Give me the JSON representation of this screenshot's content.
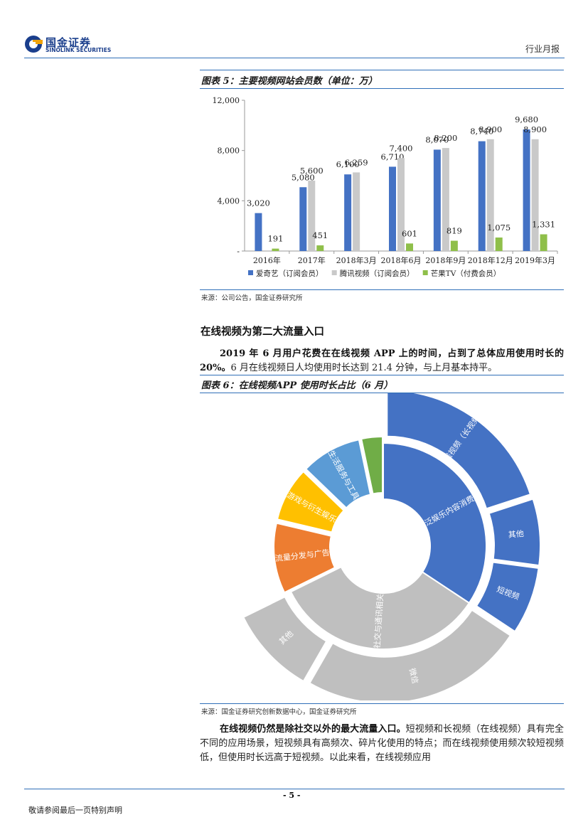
{
  "header": {
    "logo_cn": "国金证券",
    "logo_en": "SINOLINK SECURITIES",
    "report_type": "行业月报"
  },
  "figure5": {
    "title": "图表 5：主要视频网站会员数（单位：万）",
    "source": "来源：公司公告，国金证券研究所"
  },
  "section": {
    "heading": "在线视频为第二大流量入口",
    "para1_bold": "2019 年 6 月用户花费在在线视频 APP 上的时间，占到了总体应用使用时长的 20%。",
    "para1_rest": "6 月在线视频日人均使用时长达到 21.4 分钟，与上月基本持平。"
  },
  "figure6": {
    "title": "图表 6：在线视频APP 使用时长占比（6 月）",
    "source": "来源：国金证券研究创新数据中心，国金证券研究所"
  },
  "closing": {
    "para_bold": "在线视频仍然是除社交以外的最大流量入口。",
    "para_rest": "短视频和长视频（在线视频）具有完全不同的应用场景，短视频具有高频次、碎片化使用的特点；而在线视频使用频次较短视频低，但使用时长远高于短视频。以此来看，在线视频应用"
  },
  "footer": {
    "page": "- 5 -",
    "disclaimer": "敬请参阅最后一页特别声明"
  },
  "chart_data": [
    {
      "type": "bar",
      "categories": [
        "2016年",
        "2017年",
        "2018年3月",
        "2018年6月",
        "2018年9月",
        "2018年12月",
        "2019年3月"
      ],
      "series": [
        {
          "name": "爱奇艺（订阅会员）",
          "color": "#4472c4",
          "values": [
            3020,
            5080,
            6100,
            6710,
            8070,
            8740,
            9680
          ],
          "labels": [
            "3,020",
            "5,080",
            "6,100",
            "6,710",
            "8,070",
            "8,740",
            "9,680"
          ]
        },
        {
          "name": "腾讯视频（订阅会员）",
          "color": "#c9c9c9",
          "values": [
            null,
            5600,
            6259,
            7400,
            8200,
            8900,
            8900
          ],
          "labels": [
            "",
            "5,600",
            "6,259",
            "7,400",
            "8,200",
            "8,900",
            "8,900"
          ]
        },
        {
          "name": "芒果TV（付费会员）",
          "color": "#8fbf4a",
          "values": [
            191,
            451,
            null,
            601,
            819,
            1075,
            1331
          ],
          "labels": [
            "191",
            "451",
            "",
            "601",
            "819",
            "1,075",
            "1,331"
          ]
        }
      ],
      "yticks": [
        0,
        4000,
        8000,
        12000
      ],
      "ytick_labels": [
        "-",
        "4,000",
        "8,000",
        "12,000"
      ],
      "ylim": [
        0,
        12000
      ],
      "legend": "bottom"
    },
    {
      "type": "sunburst",
      "inner": [
        {
          "label": "泛娱乐内容消费",
          "share": 0.343,
          "color": "#4472c4"
        },
        {
          "label": "社交与通讯相关",
          "share": 0.334,
          "color": "#bfbfbf"
        },
        {
          "label": "流量分发与广告",
          "share": 0.11,
          "color": "#ed7d31"
        },
        {
          "label": "游戏与衍生娱乐",
          "share": 0.085,
          "color": "#ffc000"
        },
        {
          "label": "生活服务与工具",
          "share": 0.095,
          "color": "#5b9bd5"
        },
        {
          "label": "",
          "share": 0.033,
          "color": "#70ad47"
        }
      ],
      "outer": [
        {
          "label": "在线视频（长视频）",
          "share": 0.2,
          "color": "#4472c4"
        },
        {
          "label": "其他",
          "share": 0.071,
          "color": "#4472c4"
        },
        {
          "label": "短视频",
          "share": 0.072,
          "color": "#4472c4"
        },
        {
          "label": "微信",
          "share": 0.24,
          "color": "#bfbfbf"
        },
        {
          "label": "其他",
          "share": 0.094,
          "color": "#bfbfbf"
        }
      ]
    }
  ]
}
